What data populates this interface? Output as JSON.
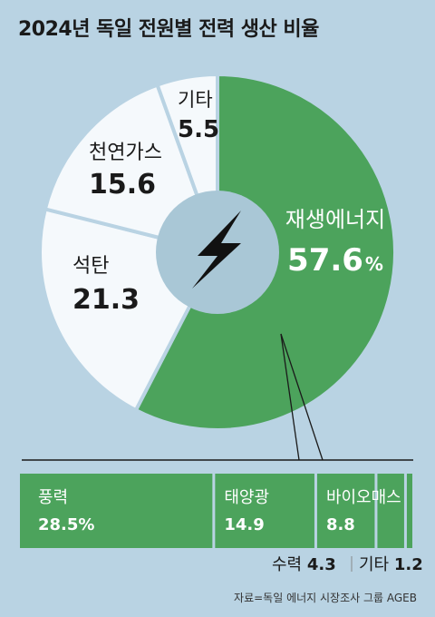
{
  "title": "2024년 독일 전원별 전력 생산 비율",
  "source": "자료=독일 에너지 시장조사 그룹 AGEB",
  "colors": {
    "renewable": "#4ca35c",
    "other": "#f5f9fc",
    "background": "#b9d3e3",
    "center": "#a9c7d6",
    "text": "#1a1a1a"
  },
  "chart_data": [
    {
      "type": "pie",
      "categories": [
        "재생에너지",
        "석탄",
        "천연가스",
        "기타"
      ],
      "values": [
        57.6,
        21.3,
        15.6,
        5.5
      ],
      "value_labels": [
        "57.6",
        "21.3",
        "15.6",
        "5.5"
      ],
      "unit": "%",
      "center_icon": "lightning-bolt-icon"
    },
    {
      "type": "bar",
      "parent": "재생에너지",
      "orientation": "horizontal-stacked",
      "categories": [
        "풍력",
        "태양광",
        "바이오매스",
        "수력",
        "기타"
      ],
      "values": [
        28.5,
        14.9,
        8.8,
        4.3,
        1.2
      ],
      "value_labels": [
        "28.5%",
        "14.9",
        "8.8",
        "4.3",
        "1.2"
      ],
      "unit": "%",
      "footer_labels": [
        {
          "name": "수력",
          "value": "4.3"
        },
        {
          "name": "기타",
          "value": "1.2"
        }
      ]
    }
  ]
}
